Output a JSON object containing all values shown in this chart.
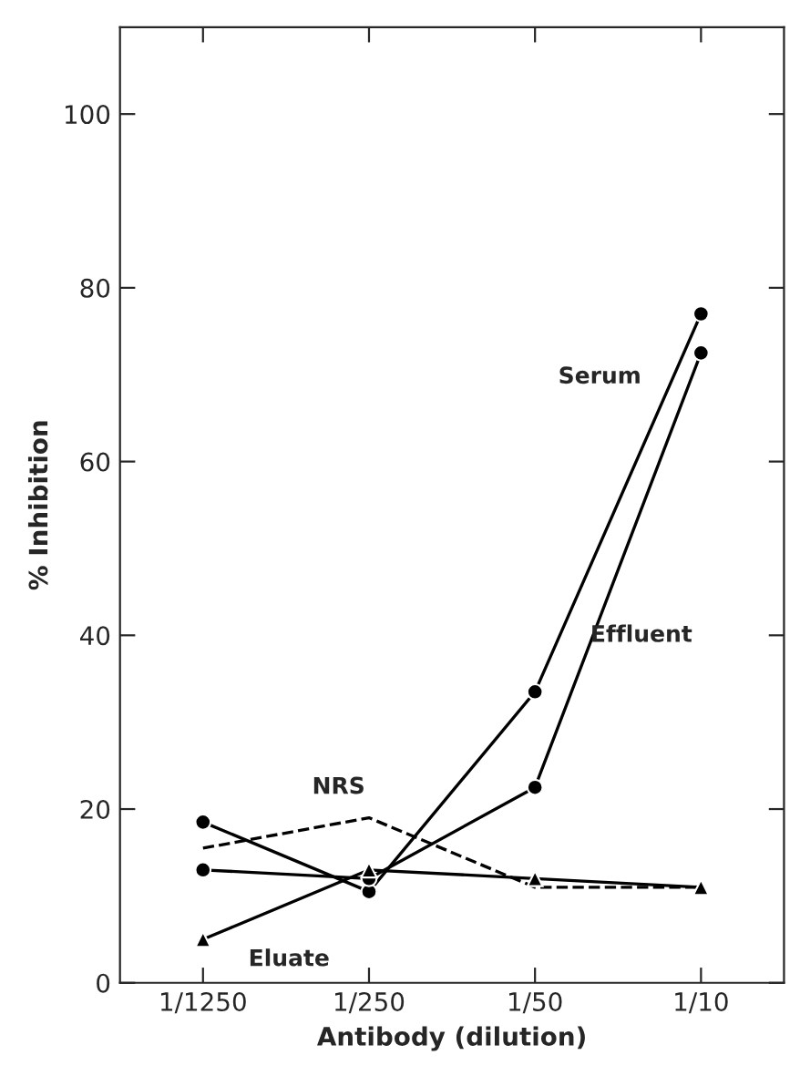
{
  "chart_data": {
    "type": "line",
    "ylabel": "% Inhibition",
    "xlabel": "Antibody (dilution)",
    "categories": [
      "1/1250",
      "1/250",
      "1/50",
      "1/10"
    ],
    "series": [
      {
        "name": "Serum",
        "color": "#000000",
        "marker": "circle",
        "line_style": "solid",
        "values": [
          18.5,
          10.5,
          33.5,
          77
        ]
      },
      {
        "name": "Effluent",
        "color": "#000000",
        "marker": "circle",
        "line_style": "solid",
        "values": [
          13,
          12,
          22.5,
          72.5
        ]
      },
      {
        "name": "NRS",
        "color": "#000000",
        "marker": "none",
        "line_style": "dashed",
        "values": [
          15.5,
          19,
          11,
          11
        ]
      },
      {
        "name": "Eluate",
        "color": "#000000",
        "marker": "triangle",
        "line_style": "solid",
        "values": [
          5,
          13,
          12,
          11
        ]
      }
    ],
    "ylim": [
      0,
      110
    ],
    "yticks": [
      0,
      20,
      40,
      60,
      80,
      100
    ],
    "grid": false,
    "legend": false
  }
}
